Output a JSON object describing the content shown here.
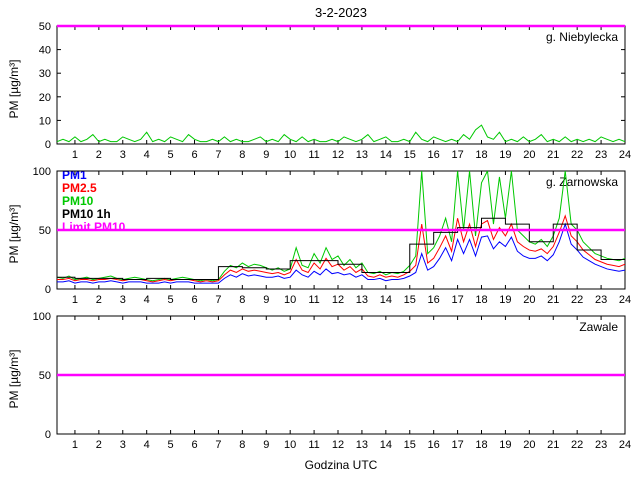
{
  "title": "3-2-2023",
  "axes": {
    "ylabel": "PM [µg/m³]",
    "xlabel": "Godzina UTC",
    "xticks": [
      1,
      2,
      3,
      4,
      5,
      6,
      7,
      8,
      9,
      10,
      11,
      12,
      13,
      14,
      15,
      16,
      17,
      18,
      19,
      20,
      21,
      22,
      23,
      24
    ]
  },
  "colors": {
    "pm1": "#0000ff",
    "pm25": "#ff0000",
    "pm10": "#00c800",
    "pm10_1h": "#000000",
    "limit": "#ff00ff"
  },
  "chart_data": [
    {
      "type": "line",
      "title": "g. Niebylecka",
      "xlim": [
        0.25,
        24
      ],
      "ylim": [
        0,
        50
      ],
      "yticks": [
        0,
        10,
        20,
        30,
        40,
        50
      ],
      "x_start": 0.25,
      "x_step": 0.25,
      "limit": {
        "label": "Limit PM10",
        "value": 50,
        "color": "#ff00ff"
      },
      "series": [
        {
          "name": "PM10",
          "color": "#00c800",
          "values": [
            1,
            2,
            1,
            3,
            1,
            2,
            4,
            1,
            2,
            1,
            1,
            3,
            2,
            1,
            2,
            5,
            1,
            2,
            1,
            3,
            2,
            1,
            4,
            2,
            1,
            1,
            2,
            1,
            3,
            1,
            2,
            1,
            1,
            2,
            3,
            1,
            2,
            1,
            4,
            2,
            1,
            3,
            1,
            2,
            1,
            1,
            2,
            1,
            3,
            2,
            1,
            2,
            4,
            1,
            2,
            3,
            1,
            1,
            2,
            1,
            5,
            2,
            1,
            3,
            2,
            1,
            2,
            1,
            4,
            2,
            6,
            8,
            3,
            2,
            5,
            1,
            2,
            1,
            3,
            1,
            2,
            4,
            1,
            2,
            1,
            3,
            1,
            2,
            1,
            2,
            1,
            3,
            2,
            1,
            2,
            1
          ]
        }
      ]
    },
    {
      "type": "line",
      "title": "g. Zarnowska",
      "xlim": [
        0.25,
        24
      ],
      "ylim": [
        0,
        100
      ],
      "yticks": [
        0,
        50,
        100
      ],
      "x_start": 0.25,
      "x_step": 0.25,
      "limit": {
        "label": "Limit PM10",
        "value": 50,
        "color": "#ff00ff"
      },
      "legend": [
        {
          "label": "PM1",
          "color": "#0000ff"
        },
        {
          "label": "PM2.5",
          "color": "#ff0000"
        },
        {
          "label": "PM10",
          "color": "#00c800"
        },
        {
          "label": "PM10 1h",
          "color": "#000000"
        },
        {
          "label": "Limit PM10",
          "color": "#ff00ff"
        }
      ],
      "series": [
        {
          "name": "PM1",
          "color": "#0000ff",
          "values": [
            6,
            6,
            7,
            5,
            6,
            6,
            5,
            6,
            6,
            7,
            6,
            5,
            6,
            6,
            6,
            5,
            5,
            5,
            6,
            5,
            6,
            6,
            6,
            5,
            5,
            5,
            5,
            5,
            9,
            12,
            10,
            13,
            11,
            12,
            11,
            10,
            10,
            11,
            9,
            10,
            16,
            12,
            10,
            15,
            12,
            17,
            13,
            14,
            12,
            13,
            10,
            12,
            8,
            8,
            9,
            7,
            8,
            8,
            9,
            11,
            14,
            30,
            16,
            19,
            26,
            35,
            24,
            42,
            30,
            42,
            28,
            44,
            45,
            34,
            40,
            36,
            44,
            32,
            28,
            26,
            26,
            28,
            24,
            29,
            40,
            55,
            38,
            33,
            27,
            24,
            21,
            19,
            17,
            16,
            15,
            16
          ]
        },
        {
          "name": "PM2.5",
          "color": "#ff0000",
          "values": [
            8,
            8,
            9,
            7,
            8,
            8,
            7,
            8,
            8,
            9,
            8,
            7,
            8,
            8,
            8,
            7,
            6,
            7,
            8,
            7,
            8,
            8,
            8,
            7,
            6,
            7,
            6,
            7,
            12,
            16,
            14,
            17,
            15,
            16,
            15,
            14,
            13,
            14,
            12,
            14,
            25,
            16,
            14,
            22,
            17,
            26,
            19,
            21,
            16,
            19,
            14,
            17,
            11,
            10,
            12,
            10,
            11,
            10,
            12,
            15,
            20,
            55,
            22,
            26,
            35,
            45,
            32,
            60,
            40,
            55,
            36,
            55,
            58,
            42,
            52,
            45,
            55,
            40,
            36,
            33,
            32,
            34,
            30,
            36,
            48,
            62,
            45,
            40,
            33,
            29,
            25,
            23,
            21,
            20,
            19,
            21
          ]
        },
        {
          "name": "PM10",
          "color": "#00c800",
          "values": [
            10,
            9,
            11,
            8,
            9,
            10,
            8,
            9,
            10,
            11,
            9,
            8,
            9,
            10,
            9,
            8,
            7,
            8,
            9,
            8,
            9,
            10,
            9,
            8,
            7,
            8,
            7,
            8,
            15,
            20,
            18,
            22,
            19,
            21,
            20,
            18,
            16,
            18,
            15,
            17,
            35,
            20,
            18,
            30,
            22,
            35,
            25,
            28,
            20,
            25,
            18,
            22,
            14,
            13,
            15,
            12,
            14,
            13,
            15,
            20,
            28,
            100,
            30,
            35,
            45,
            60,
            40,
            100,
            50,
            100,
            45,
            90,
            100,
            55,
            95,
            60,
            100,
            50,
            45,
            40,
            38,
            42,
            36,
            45,
            60,
            100,
            55,
            50,
            40,
            35,
            30,
            28,
            26,
            25,
            24,
            26
          ]
        },
        {
          "name": "PM10 1h",
          "color": "#000000",
          "step": true,
          "values": [
            10,
            9,
            9,
            8,
            9,
            8,
            8,
            19,
            18,
            17,
            24,
            24,
            21,
            14,
            14,
            38,
            48,
            52,
            60,
            55,
            40,
            55,
            33,
            25
          ]
        }
      ]
    },
    {
      "type": "line",
      "title": "Zawale",
      "xlim": [
        0.25,
        24
      ],
      "ylim": [
        0,
        100
      ],
      "yticks": [
        0,
        50,
        100
      ],
      "x_start": 0.25,
      "x_step": 0.25,
      "limit": {
        "label": "Limit PM10",
        "value": 50,
        "color": "#ff00ff"
      },
      "series": []
    }
  ]
}
